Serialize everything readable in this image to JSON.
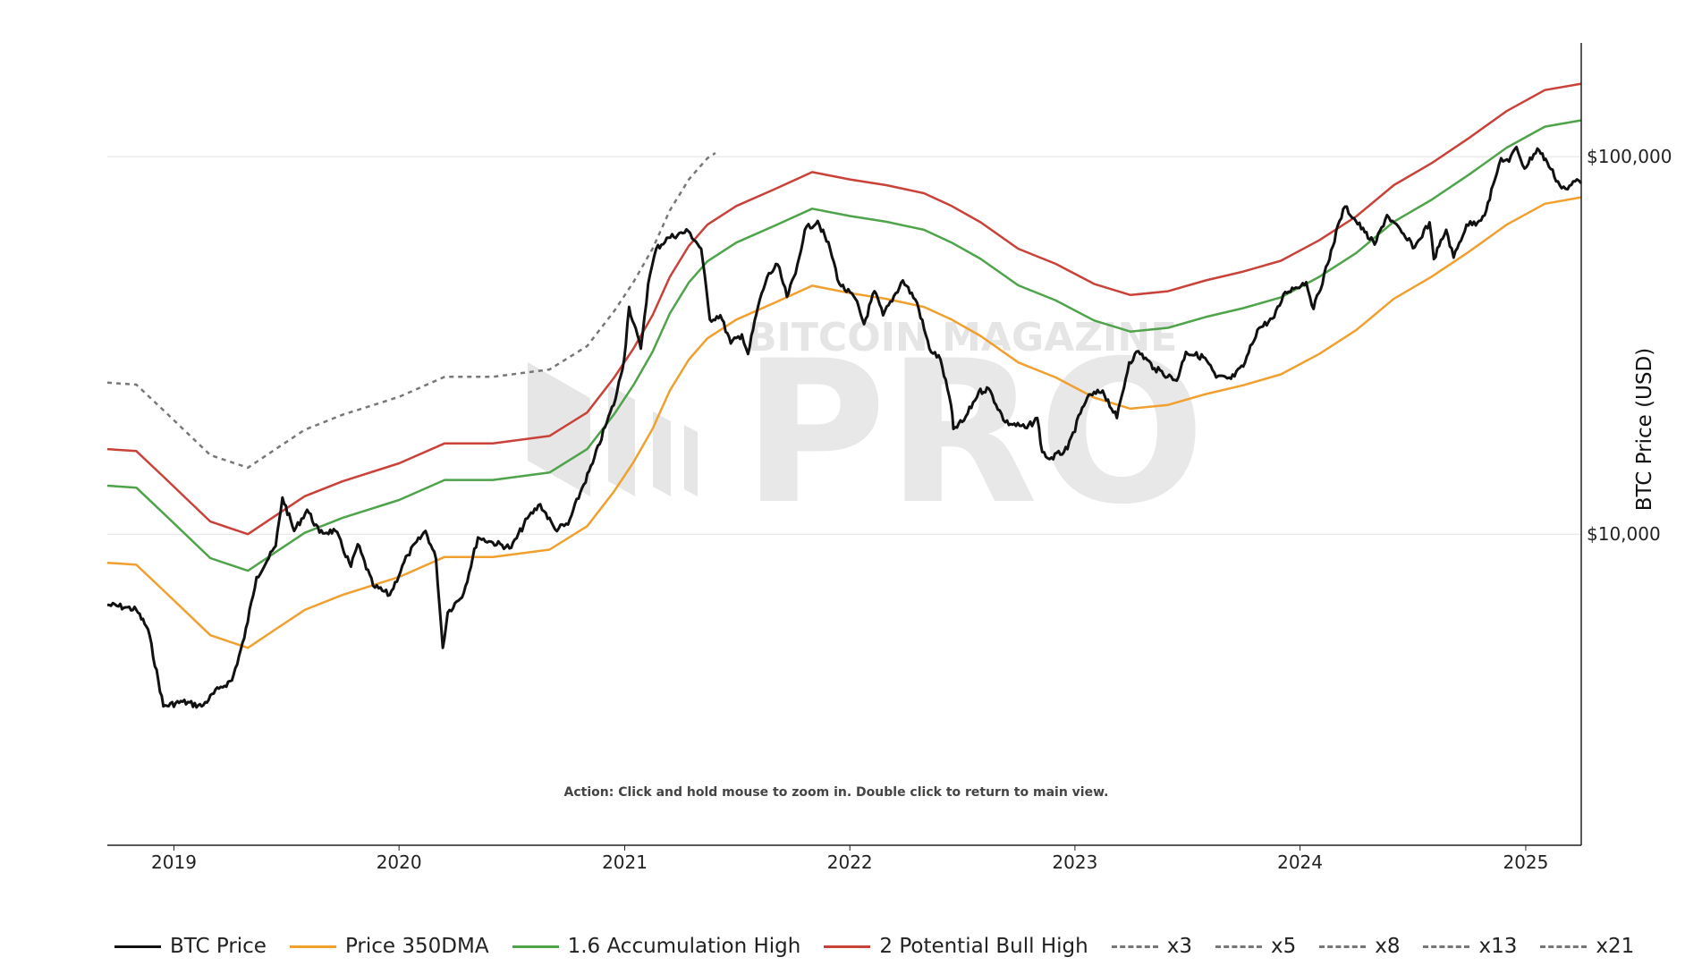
{
  "chart_data": {
    "type": "line",
    "x_ticks": [
      "2019",
      "2020",
      "2021",
      "2022",
      "2023",
      "2024",
      "2025"
    ],
    "y_ticks": [
      {
        "value": 100000,
        "label": "$100,000"
      },
      {
        "value": 10000,
        "label": "$10,000"
      }
    ],
    "y_scale": "log",
    "ylabel": "BTC Price (USD)",
    "xlim": [
      "2018-09-15",
      "2025-04-01"
    ],
    "ylim": [
      1500,
      200000
    ],
    "grid": true,
    "legend_position": "bottom",
    "note": "Action: Click and hold mouse to zoom in.  Double click to return to main view.",
    "watermark": {
      "small": "BITCOIN MAGAZINE",
      "big": "PRO",
      "mark": "®"
    },
    "series": [
      {
        "name": "BTC Price",
        "color": "#111111",
        "dashed": false,
        "width": 3,
        "x": [
          "2018-09-15",
          "2018-10-15",
          "2018-11-01",
          "2018-11-20",
          "2018-12-15",
          "2019-01-15",
          "2019-02-15",
          "2019-03-15",
          "2019-04-05",
          "2019-04-25",
          "2019-05-15",
          "2019-06-01",
          "2019-06-15",
          "2019-06-26",
          "2019-07-15",
          "2019-08-05",
          "2019-08-25",
          "2019-09-20",
          "2019-10-15",
          "2019-10-26",
          "2019-11-20",
          "2019-12-17",
          "2020-01-15",
          "2020-02-13",
          "2020-03-01",
          "2020-03-12",
          "2020-03-20",
          "2020-04-15",
          "2020-05-08",
          "2020-06-01",
          "2020-07-01",
          "2020-07-27",
          "2020-08-17",
          "2020-09-10",
          "2020-10-01",
          "2020-10-21",
          "2020-11-10",
          "2020-11-30",
          "2020-12-17",
          "2020-12-31",
          "2021-01-08",
          "2021-01-27",
          "2021-02-08",
          "2021-02-21",
          "2021-03-13",
          "2021-04-14",
          "2021-05-05",
          "2021-05-19",
          "2021-06-05",
          "2021-06-22",
          "2021-07-10",
          "2021-07-20",
          "2021-08-05",
          "2021-08-20",
          "2021-09-06",
          "2021-09-21",
          "2021-10-05",
          "2021-10-20",
          "2021-11-10",
          "2021-11-30",
          "2021-12-15",
          "2022-01-10",
          "2022-01-24",
          "2022-02-10",
          "2022-02-24",
          "2022-03-28",
          "2022-04-20",
          "2022-05-10",
          "2022-05-28",
          "2022-06-14",
          "2022-06-18",
          "2022-07-05",
          "2022-07-29",
          "2022-08-14",
          "2022-09-10",
          "2022-10-15",
          "2022-11-01",
          "2022-11-09",
          "2022-11-21",
          "2022-12-20",
          "2023-01-10",
          "2023-01-21",
          "2023-02-15",
          "2023-03-10",
          "2023-03-30",
          "2023-04-14",
          "2023-05-10",
          "2023-06-15",
          "2023-06-30",
          "2023-07-31",
          "2023-08-18",
          "2023-09-11",
          "2023-10-01",
          "2023-10-24",
          "2023-11-20",
          "2023-12-08",
          "2024-01-11",
          "2024-01-23",
          "2024-02-15",
          "2024-03-05",
          "2024-03-14",
          "2024-04-15",
          "2024-05-01",
          "2024-05-21",
          "2024-06-20",
          "2024-07-05",
          "2024-07-29",
          "2024-08-05",
          "2024-08-25",
          "2024-09-06",
          "2024-09-27",
          "2024-10-15",
          "2024-10-29",
          "2024-11-12",
          "2024-11-22",
          "2024-12-05",
          "2024-12-17",
          "2024-12-30",
          "2025-01-20",
          "2025-02-05",
          "2025-02-25",
          "2025-03-10",
          "2025-03-25",
          "2025-04-01"
        ],
        "y": [
          6500,
          6400,
          6300,
          5600,
          3500,
          3600,
          3500,
          3900,
          4100,
          5300,
          7700,
          8500,
          9300,
          12500,
          10200,
          11600,
          10100,
          10200,
          8200,
          9400,
          7300,
          6900,
          8800,
          10200,
          8600,
          5000,
          6200,
          7000,
          9800,
          9500,
          9200,
          11000,
          12000,
          10300,
          10600,
          12900,
          15400,
          19200,
          22800,
          29000,
          40000,
          31000,
          46000,
          57000,
          61000,
          63500,
          57000,
          37000,
          38000,
          32000,
          33800,
          30000,
          40000,
          48000,
          51800,
          42500,
          49000,
          64000,
          67500,
          57000,
          46000,
          42000,
          36000,
          44000,
          38000,
          47000,
          41000,
          31000,
          29000,
          22000,
          19000,
          20000,
          23800,
          24300,
          19800,
          19100,
          20300,
          16500,
          15800,
          16800,
          20900,
          23000,
          24000,
          20300,
          28500,
          30500,
          27500,
          25500,
          30400,
          29300,
          26000,
          25800,
          27800,
          34800,
          37500,
          43800,
          46500,
          39500,
          52000,
          67500,
          73700,
          63000,
          58500,
          70000,
          61000,
          57500,
          67000,
          53500,
          64000,
          54000,
          66000,
          67000,
          72000,
          87000,
          99000,
          97000,
          106000,
          93000,
          105000,
          96500,
          84000,
          82000,
          87000,
          85000
        ],
        "x_range": [
          "2018-09-15",
          "2025-04-01"
        ]
      },
      {
        "name": "Price 350DMA",
        "color": "#f0a02f",
        "dashed": false,
        "width": 2.5,
        "x": [
          "2018-09-15",
          "2018-11-01",
          "2018-12-15",
          "2019-03-01",
          "2019-05-01",
          "2019-06-15",
          "2019-08-01",
          "2019-10-01",
          "2020-01-01",
          "2020-03-15",
          "2020-06-01",
          "2020-09-01",
          "2020-11-01",
          "2020-12-15",
          "2021-01-15",
          "2021-02-15",
          "2021-03-15",
          "2021-04-15",
          "2021-05-15",
          "2021-07-01",
          "2021-09-01",
          "2021-11-01",
          "2022-01-01",
          "2022-03-01",
          "2022-05-01",
          "2022-06-15",
          "2022-08-01",
          "2022-10-01",
          "2022-12-01",
          "2023-02-01",
          "2023-04-01",
          "2023-06-01",
          "2023-08-01",
          "2023-10-01",
          "2023-12-01",
          "2024-02-01",
          "2024-04-01",
          "2024-06-01",
          "2024-08-01",
          "2024-10-01",
          "2024-12-01",
          "2025-02-01",
          "2025-04-01"
        ],
        "y": [
          8400,
          8300,
          7100,
          5400,
          5000,
          5600,
          6300,
          6900,
          7700,
          8700,
          8700,
          9100,
          10500,
          13000,
          15500,
          19000,
          24000,
          29000,
          33000,
          37000,
          41000,
          45500,
          43500,
          42000,
          40000,
          37000,
          33500,
          28500,
          26000,
          23000,
          21500,
          22000,
          23500,
          24800,
          26500,
          30000,
          34700,
          42000,
          48000,
          56000,
          66000,
          75000,
          78000
        ],
        "x_range": [
          "2018-09-15",
          "2025-04-01"
        ]
      },
      {
        "name": "1.6 Accumulation High",
        "color": "#4fa34a",
        "dashed": false,
        "width": 2.5,
        "y_scale_factor": 1.6,
        "derived_from": "Price 350DMA"
      },
      {
        "name": "2 Potential Bull High",
        "color": "#c9423a",
        "dashed": false,
        "width": 2.5,
        "y_scale_factor": 2,
        "derived_from": "Price 350DMA"
      },
      {
        "name": "x3",
        "color": "#777777",
        "dashed": true,
        "width": 2.5,
        "y_scale_factor": 3,
        "derived_from": "Price 350DMA",
        "x_range": [
          "2018-09-15",
          "2021-05-28"
        ]
      },
      {
        "name": "x5",
        "color": "#777777",
        "dashed": true,
        "width": 2.5
      },
      {
        "name": "x8",
        "color": "#777777",
        "dashed": true,
        "width": 2.5
      },
      {
        "name": "x13",
        "color": "#777777",
        "dashed": true,
        "width": 2.5
      },
      {
        "name": "x21",
        "color": "#777777",
        "dashed": true,
        "width": 2.5
      }
    ]
  }
}
